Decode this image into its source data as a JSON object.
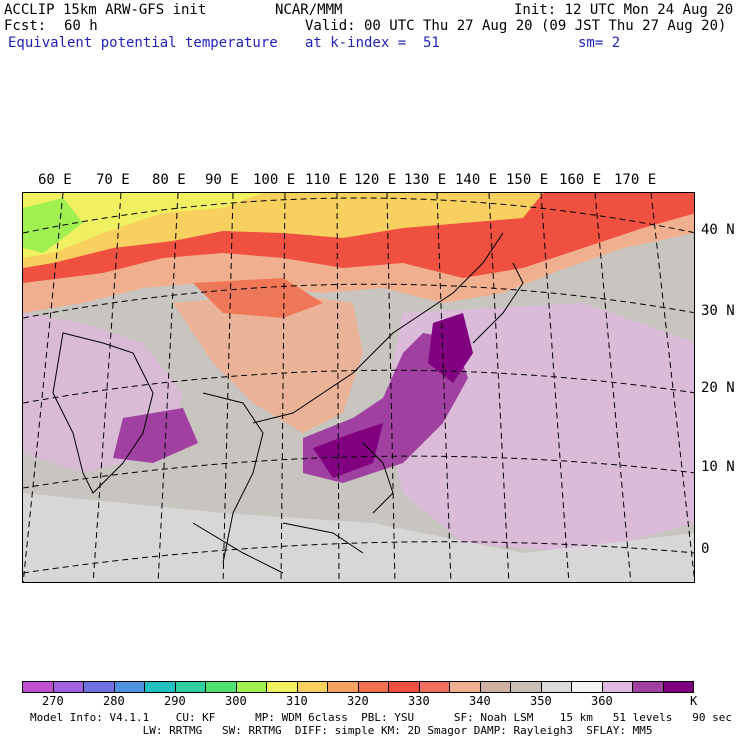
{
  "header": {
    "title": "ACCLIP 15km ARW-GFS init",
    "org": "NCAR/MMM",
    "init": "Init: 12 UTC Mon 24 Aug 20",
    "fcst_label": "Fcst:",
    "fcst_value": "60 h",
    "valid": "Valid: 00 UTC Thu 27 Aug 20 (09 JST Thu 27 Aug 20)",
    "field": "Equivalent potential temperature",
    "level": "at k-index =  51",
    "smooth": "sm= 2"
  },
  "map": {
    "lon_labels": [
      "60 E",
      "70 E",
      "80 E",
      "90 E",
      "100 E",
      "110 E",
      "120 E",
      "130 E",
      "140 E",
      "150 E",
      "160 E",
      "170 E"
    ],
    "lat_labels": [
      "40 N",
      "30 N",
      "20 N",
      "10 N",
      "0"
    ]
  },
  "colorbar": {
    "colors": [
      "#c050d0",
      "#a060e0",
      "#7070e0",
      "#5090e0",
      "#20c0c0",
      "#30d0a0",
      "#50e070",
      "#a0f050",
      "#f0f060",
      "#f8d060",
      "#f4a060",
      "#f07050",
      "#f05040",
      "#f07060",
      "#f0b090",
      "#d0b0a0",
      "#c8c0b8",
      "#dcdcdc",
      "#f4f4f4",
      "#e0b8e0",
      "#a040a0",
      "#800080"
    ],
    "ticks": [
      "270",
      "280",
      "290",
      "300",
      "310",
      "320",
      "330",
      "340",
      "350",
      "360"
    ],
    "unit": "K"
  },
  "footer": {
    "line1": "Model Info: V4.1.1    CU: KF      MP: WDM 6class  PBL: YSU      SF: Noah LSM    15 km   51 levels   90 sec",
    "line2": "                 LW: RRTMG   SW: RRTMG  DIFF: simple KM: 2D Smagor DAMP: Rayleigh3  SFLAY: MM5"
  }
}
